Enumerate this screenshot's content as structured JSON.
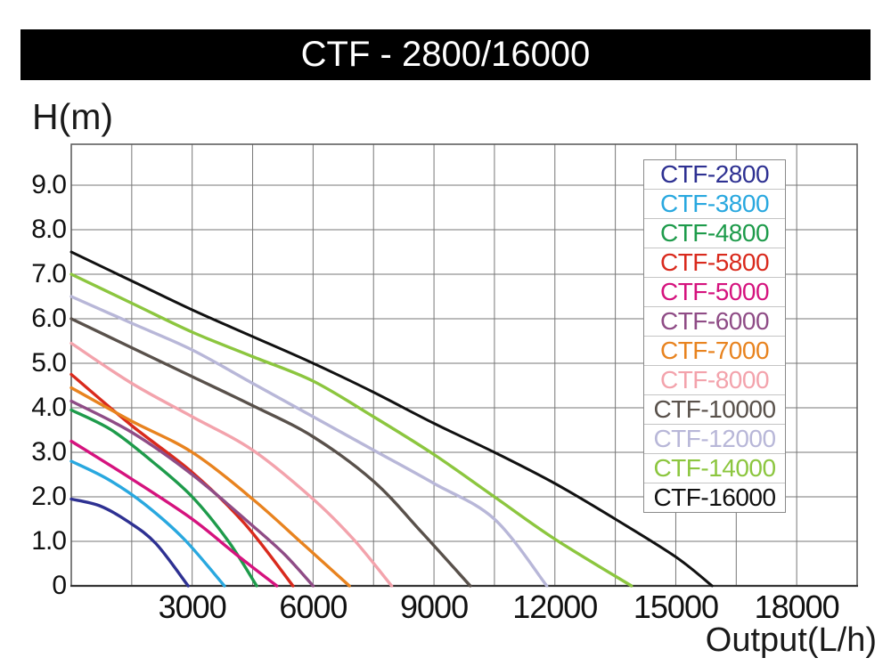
{
  "title": "CTF - 2800/16000",
  "chart_data": {
    "type": "line",
    "title": "CTF - 2800/16000",
    "xlabel": "Output(L/h)",
    "ylabel": "H(m)",
    "xlim": [
      0,
      19500
    ],
    "ylim": [
      0,
      9.92
    ],
    "grid": true,
    "x_grid_step": 1500,
    "y_grid_step": 1.0,
    "legend_position": "upper right inside",
    "x_ticks": [
      {
        "label": "3000",
        "value": 3000
      },
      {
        "label": "6000",
        "value": 6000
      },
      {
        "label": "9000",
        "value": 9000
      },
      {
        "label": "12000",
        "value": 12000
      },
      {
        "label": "15000",
        "value": 15000
      },
      {
        "label": "18000",
        "value": 18000
      }
    ],
    "y_ticks": [
      {
        "label": "9.0",
        "value": 9.0
      },
      {
        "label": "8.0",
        "value": 8.0
      },
      {
        "label": "7.0",
        "value": 7.0
      },
      {
        "label": "6.0",
        "value": 6.0
      },
      {
        "label": "5.0",
        "value": 5.0
      },
      {
        "label": "4.0",
        "value": 4.0
      },
      {
        "label": "3.0",
        "value": 3.0
      },
      {
        "label": "2.0",
        "value": 2.0
      },
      {
        "label": "1.0",
        "value": 1.0
      },
      {
        "label": "0",
        "value": 0
      }
    ],
    "series": [
      {
        "name": "CTF-2800",
        "color": "#2e3192",
        "max_flow_lh": 2900,
        "max_head_m": 1.95,
        "points": [
          [
            0,
            1.95
          ],
          [
            700,
            1.8
          ],
          [
            1400,
            1.45
          ],
          [
            2100,
            0.95
          ],
          [
            2900,
            0
          ]
        ]
      },
      {
        "name": "CTF-3800",
        "color": "#29a8df",
        "max_flow_lh": 3800,
        "max_head_m": 2.8,
        "points": [
          [
            0,
            2.8
          ],
          [
            900,
            2.4
          ],
          [
            1800,
            1.85
          ],
          [
            2800,
            1.05
          ],
          [
            3800,
            0
          ]
        ]
      },
      {
        "name": "CTF-4800",
        "color": "#1e9b4b",
        "max_flow_lh": 4600,
        "max_head_m": 3.95,
        "points": [
          [
            0,
            3.95
          ],
          [
            1000,
            3.5
          ],
          [
            2000,
            2.8
          ],
          [
            3000,
            2.0
          ],
          [
            3900,
            1.0
          ],
          [
            4600,
            0
          ]
        ]
      },
      {
        "name": "CTF-5800",
        "color": "#d92a1d",
        "max_flow_lh": 5500,
        "max_head_m": 4.75,
        "points": [
          [
            0,
            4.75
          ],
          [
            1500,
            3.6
          ],
          [
            3000,
            2.55
          ],
          [
            4300,
            1.4
          ],
          [
            5500,
            0
          ]
        ]
      },
      {
        "name": "CTF-5000",
        "color": "#d5137e",
        "max_flow_lh": 5100,
        "max_head_m": 3.25,
        "points": [
          [
            0,
            3.25
          ],
          [
            1500,
            2.4
          ],
          [
            3000,
            1.5
          ],
          [
            4100,
            0.7
          ],
          [
            5100,
            0
          ]
        ]
      },
      {
        "name": "CTF-6000",
        "color": "#8f4c86",
        "max_flow_lh": 6000,
        "max_head_m": 4.15,
        "points": [
          [
            0,
            4.15
          ],
          [
            1500,
            3.45
          ],
          [
            3000,
            2.5
          ],
          [
            4500,
            1.35
          ],
          [
            5300,
            0.7
          ],
          [
            6000,
            0
          ]
        ]
      },
      {
        "name": "CTF-7000",
        "color": "#e8831f",
        "max_flow_lh": 6900,
        "max_head_m": 4.45,
        "points": [
          [
            0,
            4.45
          ],
          [
            1500,
            3.7
          ],
          [
            3000,
            3.0
          ],
          [
            4500,
            1.95
          ],
          [
            5800,
            0.9
          ],
          [
            6900,
            0
          ]
        ]
      },
      {
        "name": "CTF-8000",
        "color": "#f3a3ac",
        "max_flow_lh": 7950,
        "max_head_m": 5.45,
        "points": [
          [
            0,
            5.45
          ],
          [
            1500,
            4.55
          ],
          [
            3000,
            3.8
          ],
          [
            4500,
            3.05
          ],
          [
            6000,
            1.95
          ],
          [
            7000,
            1.05
          ],
          [
            7950,
            0
          ]
        ]
      },
      {
        "name": "CTF-10000",
        "color": "#59514b",
        "max_flow_lh": 9900,
        "max_head_m": 6.0,
        "points": [
          [
            0,
            6.0
          ],
          [
            1500,
            5.35
          ],
          [
            3000,
            4.7
          ],
          [
            4500,
            4.05
          ],
          [
            6000,
            3.35
          ],
          [
            7500,
            2.35
          ],
          [
            8700,
            1.2
          ],
          [
            9900,
            0
          ]
        ]
      },
      {
        "name": "CTF-12000",
        "color": "#b8b7d8",
        "max_flow_lh": 11800,
        "max_head_m": 6.5,
        "points": [
          [
            0,
            6.5
          ],
          [
            1500,
            5.9
          ],
          [
            3000,
            5.3
          ],
          [
            4500,
            4.55
          ],
          [
            6000,
            3.8
          ],
          [
            7500,
            3.05
          ],
          [
            9000,
            2.3
          ],
          [
            10500,
            1.5
          ],
          [
            11800,
            0
          ]
        ]
      },
      {
        "name": "CTF-14000",
        "color": "#8cc63f",
        "max_flow_lh": 13900,
        "max_head_m": 7.0,
        "points": [
          [
            0,
            7.0
          ],
          [
            1500,
            6.35
          ],
          [
            3000,
            5.7
          ],
          [
            4500,
            5.15
          ],
          [
            6000,
            4.6
          ],
          [
            7500,
            3.8
          ],
          [
            9000,
            2.95
          ],
          [
            10500,
            2.0
          ],
          [
            12000,
            1.05
          ],
          [
            13900,
            0
          ]
        ]
      },
      {
        "name": "CTF-16000",
        "color": "#111111",
        "max_flow_lh": 15900,
        "max_head_m": 7.5,
        "points": [
          [
            0,
            7.5
          ],
          [
            1500,
            6.85
          ],
          [
            3000,
            6.2
          ],
          [
            4500,
            5.6
          ],
          [
            6000,
            5.0
          ],
          [
            7500,
            4.35
          ],
          [
            9000,
            3.65
          ],
          [
            10500,
            3.0
          ],
          [
            12000,
            2.3
          ],
          [
            13500,
            1.5
          ],
          [
            15000,
            0.65
          ],
          [
            15900,
            0
          ]
        ]
      }
    ],
    "legend_order": [
      "CTF-2800",
      "CTF-3800",
      "CTF-4800",
      "CTF-5800",
      "CTF-5000",
      "CTF-6000",
      "CTF-7000",
      "CTF-8000",
      "CTF-10000",
      "CTF-12000",
      "CTF-14000",
      "CTF-16000"
    ]
  },
  "style_colors": {
    "grid": "#777777",
    "plot_border": "#555555",
    "axis_bottom": "#333333",
    "title_bar_bg": "#000000",
    "title_text": "#ffffff"
  }
}
